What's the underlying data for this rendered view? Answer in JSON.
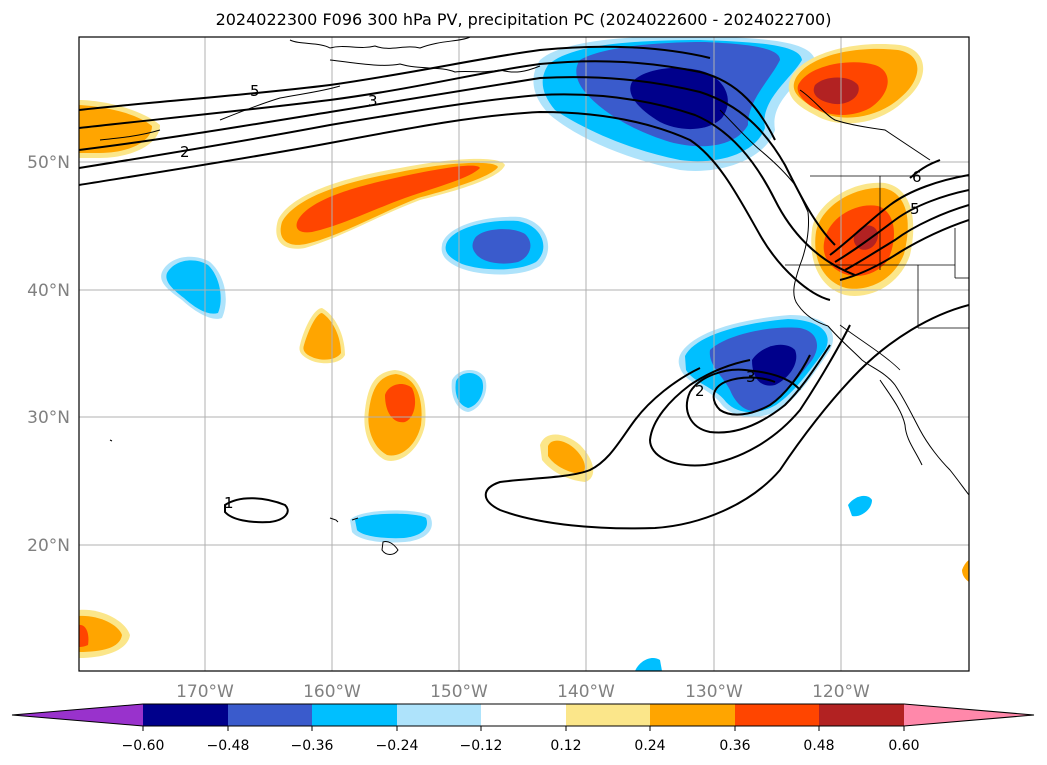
{
  "title": "2024022300 F096 300 hPa PV, precipitation PC (2024022600 - 2024022700)",
  "axes": {
    "lat_labels": [
      "50°N",
      "40°N",
      "30°N",
      "20°N"
    ],
    "lon_labels": [
      "170°W",
      "160°W",
      "150°W",
      "140°W",
      "130°W",
      "120°W"
    ],
    "grid": true,
    "tick_label_color": "#808080"
  },
  "pv_contour_labels": [
    {
      "id": "np-5",
      "text": "5"
    },
    {
      "id": "np-3",
      "text": "3"
    },
    {
      "id": "np-2",
      "text": "2"
    },
    {
      "id": "us-6",
      "text": "6"
    },
    {
      "id": "us-5",
      "text": "5"
    },
    {
      "id": "low-2",
      "text": "2"
    },
    {
      "id": "low-3",
      "text": "3"
    },
    {
      "id": "sub-1",
      "text": "1"
    }
  ],
  "colorbar": {
    "ticks": [
      "−0.60",
      "−0.48",
      "−0.36",
      "−0.24",
      "−0.12",
      "0.12",
      "0.24",
      "0.36",
      "0.48",
      "0.60"
    ],
    "colors": [
      "#9932cc",
      "#00008b",
      "#3a5bcc",
      "#00bfff",
      "#aee3fb",
      "#ffffff",
      "#fbe68a",
      "#ffa500",
      "#ff4500",
      "#b22222",
      "#ff88aa"
    ],
    "extend": "both"
  }
}
